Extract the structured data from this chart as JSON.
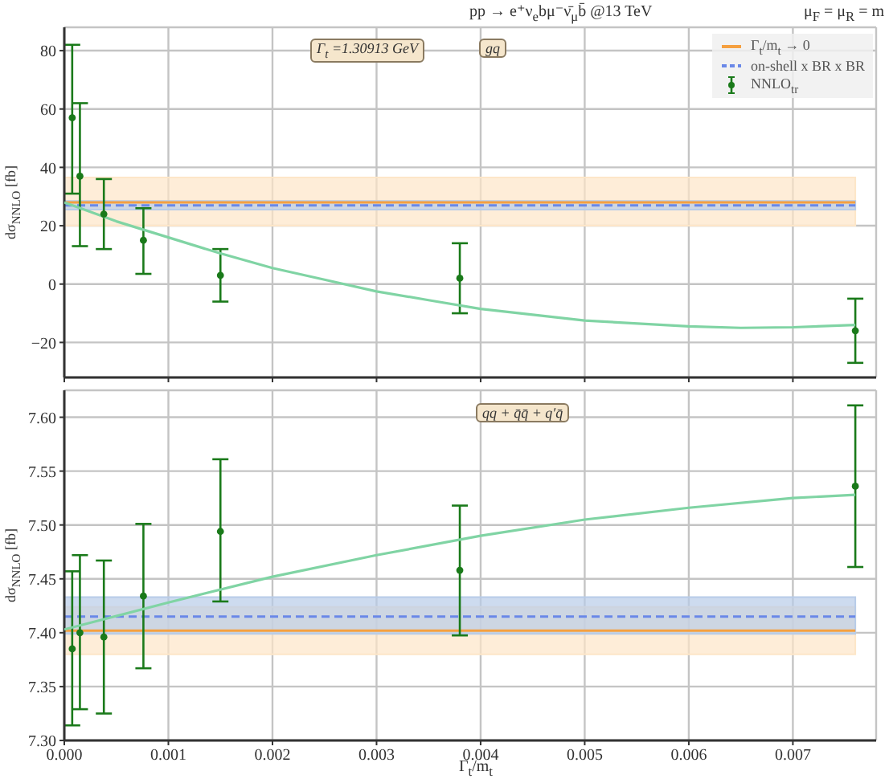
{
  "chart_data": [
    {
      "type": "scatter",
      "title": "pp → e⁺ν$_{e}$bμ⁻ν̄$_{μ}$b̄ @13 TeV",
      "subtitle": "μ$_{F}$ = μ$_{R}$ = m",
      "ylabel": "dσ$_{NNLO}$ [fb]",
      "annotations": [
        "Γ$_{t}$ =1.30913 GeV",
        "gq"
      ],
      "xlim": [
        0,
        0.0078
      ],
      "xticks": [
        0,
        0.001,
        0.002,
        0.003,
        0.004,
        0.005,
        0.006,
        0.007
      ],
      "ylim": [
        -32,
        88
      ],
      "yticks": [
        {
          "value": -20,
          "label": "−20"
        },
        0,
        20,
        40,
        60,
        80
      ],
      "tick_labels": "y",
      "grid": true,
      "legend": "top right",
      "marker": "circle",
      "series": [
        {
          "type": "line",
          "color": "#80d4a4",
          "marker": "none",
          "x": [
            0,
            0.0005,
            0.001,
            0.0015,
            0.002,
            0.0025,
            0.003,
            0.0035,
            0.004,
            0.005,
            0.006,
            0.0065,
            0.007,
            0.0076
          ],
          "values": [
            28,
            21.5,
            16,
            10.5,
            5.5,
            1.5,
            -2.5,
            -5.5,
            -8.5,
            -12.5,
            -14.5,
            -15,
            -14.8,
            -14
          ]
        },
        {
          "name": "NNLO$_{tr}$",
          "type": "scatter",
          "color": "#1a7a1a",
          "x": [
            7.6e-05,
            0.00015,
            0.00038,
            0.00076,
            0.0015,
            0.0038,
            0.0076
          ],
          "values": [
            57,
            37,
            24,
            15,
            3,
            2,
            -16
          ],
          "errors": [
            [
              31,
              82
            ],
            [
              13,
              62
            ],
            [
              12,
              36
            ],
            [
              3.5,
              26
            ],
            [
              -6,
              12
            ],
            [
              -10,
              14
            ],
            [
              -27,
              -5
            ]
          ]
        }
      ],
      "bands": [
        {
          "axis": "y",
          "from": 20,
          "to": 36.5,
          "color": "#fde6c8"
        },
        {
          "axis": "y",
          "from": 25.5,
          "to": 28.5,
          "color": "#b8cce8"
        }
      ],
      "ref_lines": [
        {
          "axis": "y",
          "value": 28,
          "label": "Γ$_{t}$/m$_{t}$ → 0",
          "color": "#f5a040",
          "line_style": "solid"
        },
        {
          "axis": "y",
          "value": 27,
          "label": "on-shell x BR x BR",
          "color": "#6a88e8",
          "line_style": "dashed"
        }
      ]
    },
    {
      "type": "scatter",
      "xlabel": "Γ$_{t}$/m$_{t}$",
      "ylabel": "dσ$_{NNLO}$ [fb]",
      "annotations": [
        "qq + q̄q̄ + q′q̄"
      ],
      "xlim": [
        0,
        0.0078
      ],
      "xticks": [
        {
          "value": 0,
          "label": "0.000"
        },
        0.001,
        0.002,
        0.003,
        0.004,
        0.005,
        0.006,
        0.007
      ],
      "ylim": [
        7.3,
        7.625
      ],
      "yticks": [
        {
          "value": 7.3,
          "label": "7.30"
        },
        7.35,
        {
          "value": 7.4,
          "label": "7.40"
        },
        7.45,
        {
          "value": 7.5,
          "label": "7.50"
        },
        7.55,
        {
          "value": 7.6,
          "label": "7.60"
        }
      ],
      "grid": true,
      "marker": "circle",
      "series": [
        {
          "type": "line",
          "color": "#80d4a4",
          "marker": "none",
          "x": [
            0,
            0.001,
            0.002,
            0.003,
            0.004,
            0.005,
            0.006,
            0.007,
            0.0076
          ],
          "values": [
            7.403,
            7.428,
            7.452,
            7.472,
            7.49,
            7.505,
            7.516,
            7.525,
            7.528
          ]
        },
        {
          "type": "scatter",
          "color": "#1a7a1a",
          "x": [
            7.6e-05,
            0.00015,
            0.00038,
            0.00076,
            0.0015,
            0.0038,
            0.0076
          ],
          "values": [
            7.385,
            7.4,
            7.396,
            7.434,
            7.494,
            7.458,
            7.536
          ],
          "errors": [
            [
              7.314,
              7.457
            ],
            [
              7.329,
              7.472
            ],
            [
              7.325,
              7.467
            ],
            [
              7.367,
              7.501
            ],
            [
              7.429,
              7.561
            ],
            [
              7.3975,
              7.518
            ],
            [
              7.461,
              7.611
            ]
          ]
        }
      ],
      "bands": [
        {
          "axis": "y",
          "from": 7.38,
          "to": 7.424,
          "color": "#fde6c8"
        },
        {
          "axis": "y",
          "from": 7.399,
          "to": 7.433,
          "color": "#b8cce8"
        }
      ],
      "ref_lines": [
        {
          "axis": "y",
          "value": 7.402,
          "color": "#f5a040",
          "line_style": "solid"
        },
        {
          "axis": "y",
          "value": 7.415,
          "color": "#6a88e8",
          "line_style": "dashed"
        }
      ]
    }
  ]
}
